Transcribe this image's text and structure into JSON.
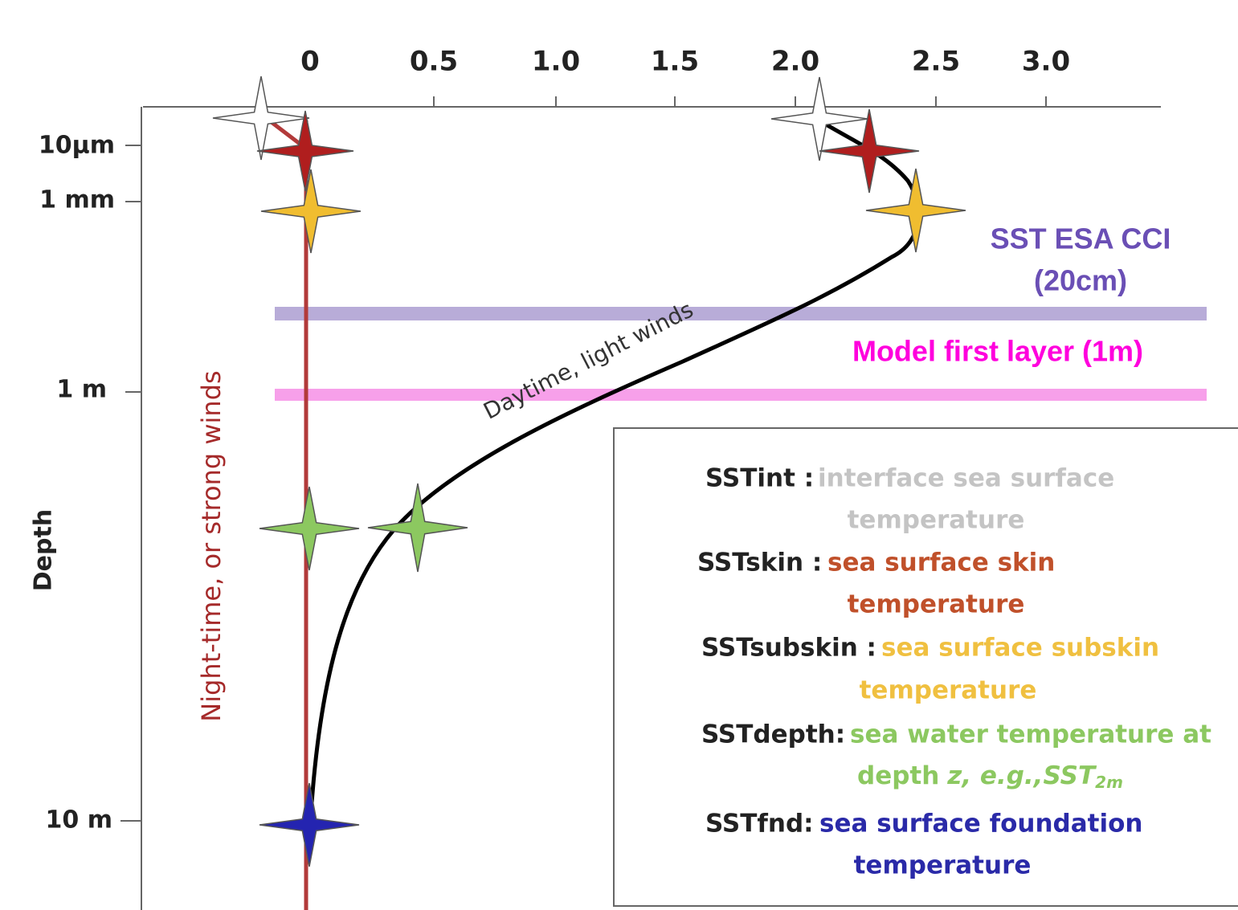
{
  "x_axis": {
    "ticks": [
      "0",
      "0.5",
      "1.0",
      "1.5",
      "2.0",
      "2.5",
      "3.0"
    ]
  },
  "y_axis": {
    "title": "Depth",
    "ticks": [
      "10µm",
      "1 mm",
      "1 m",
      "10 m"
    ]
  },
  "annotations": {
    "night": "Night-time, or strong winds",
    "day": "Daytime, light winds",
    "cci": [
      "SST ESA CCI",
      "(20cm)"
    ],
    "model": "Model first layer (1m)"
  },
  "legend": [
    {
      "term": "SSTint :",
      "desc": [
        "interface sea surface",
        "temperature"
      ]
    },
    {
      "term": "SSTskin :",
      "desc": [
        "sea surface skin",
        "temperature"
      ]
    },
    {
      "term": "SSTsubskin :",
      "desc": [
        "sea surface subskin",
        "temperature"
      ]
    },
    {
      "term": "SSTdepth:",
      "desc": [
        "sea water temperature at",
        [
          "depth",
          "z, e.g.,SST",
          "2m"
        ]
      ]
    },
    {
      "term": "SSTfnd:",
      "desc": [
        "sea surface foundation",
        "temperature"
      ]
    }
  ]
}
